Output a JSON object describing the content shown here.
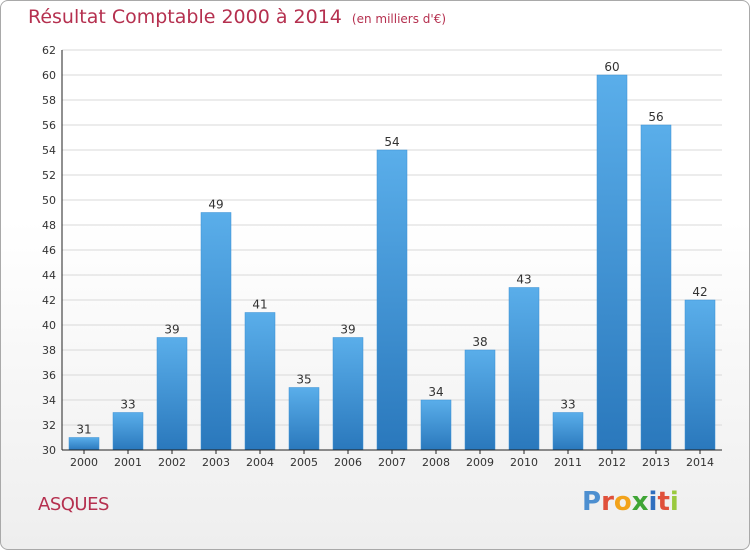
{
  "chart_data": {
    "type": "bar",
    "title": "Résultat Comptable 2000 à 2014",
    "unit_note": "(en milliers d'€)",
    "categories": [
      "2000",
      "2001",
      "2002",
      "2003",
      "2004",
      "2005",
      "2006",
      "2007",
      "2008",
      "2009",
      "2010",
      "2011",
      "2012",
      "2013",
      "2014"
    ],
    "values": [
      31,
      33,
      39,
      49,
      41,
      35,
      39,
      54,
      34,
      38,
      43,
      33,
      60,
      56,
      42
    ],
    "ylim": [
      30,
      62
    ],
    "yticks": [
      30,
      32,
      34,
      36,
      38,
      40,
      42,
      44,
      46,
      48,
      50,
      52,
      54,
      56,
      58,
      60,
      62
    ],
    "grid": true,
    "bar_color_top": "#5aaeea",
    "bar_color_bottom": "#2a78bc"
  },
  "footer": {
    "place": "ASQUES",
    "logo_letters": [
      {
        "char": "P",
        "color": "#4d8fd0"
      },
      {
        "char": "r",
        "color": "#e0503a"
      },
      {
        "char": "o",
        "color": "#f2a31b"
      },
      {
        "char": "x",
        "color": "#3fa535"
      },
      {
        "char": "i",
        "color": "#2f6fbf"
      },
      {
        "char": "t",
        "color": "#e0503a"
      },
      {
        "char": "i",
        "color": "#9ac93e"
      }
    ]
  },
  "colors": {
    "title": "#b5304f",
    "grid": "#d9d9d9",
    "axis": "#222222"
  }
}
